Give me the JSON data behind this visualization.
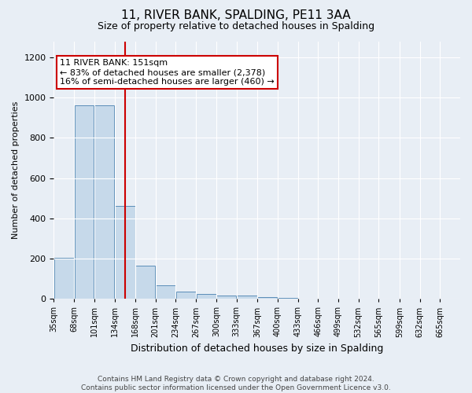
{
  "title": "11, RIVER BANK, SPALDING, PE11 3AA",
  "subtitle": "Size of property relative to detached houses in Spalding",
  "xlabel": "Distribution of detached houses by size in Spalding",
  "ylabel": "Number of detached properties",
  "footer_line1": "Contains HM Land Registry data © Crown copyright and database right 2024.",
  "footer_line2": "Contains public sector information licensed under the Open Government Licence v3.0.",
  "annotation_line1": "11 RIVER BANK: 151sqm",
  "annotation_line2": "← 83% of detached houses are smaller (2,378)",
  "annotation_line3": "16% of semi-detached houses are larger (460) →",
  "property_size": 151,
  "bar_edges": [
    35,
    68,
    101,
    134,
    168,
    201,
    234,
    267,
    300,
    333,
    367,
    400,
    433,
    466,
    499,
    532,
    565,
    599,
    632,
    665,
    698
  ],
  "bar_heights": [
    205,
    960,
    960,
    460,
    165,
    68,
    38,
    25,
    18,
    18,
    7,
    5,
    0,
    0,
    0,
    0,
    0,
    0,
    0,
    0
  ],
  "bar_color": "#c6d9ea",
  "bar_edge_color": "#5b8db8",
  "line_color": "#cc0000",
  "ylim": [
    0,
    1280
  ],
  "yticks": [
    0,
    200,
    400,
    600,
    800,
    1000,
    1200
  ],
  "background_color": "#e8eef5",
  "plot_bg_color": "#e8eef5",
  "grid_color": "#ffffff",
  "annotation_box_facecolor": "#ffffff",
  "annotation_box_edgecolor": "#cc0000",
  "annotation_fontsize": 8,
  "title_fontsize": 11,
  "subtitle_fontsize": 9,
  "ylabel_fontsize": 8,
  "xlabel_fontsize": 9,
  "footer_fontsize": 6.5
}
